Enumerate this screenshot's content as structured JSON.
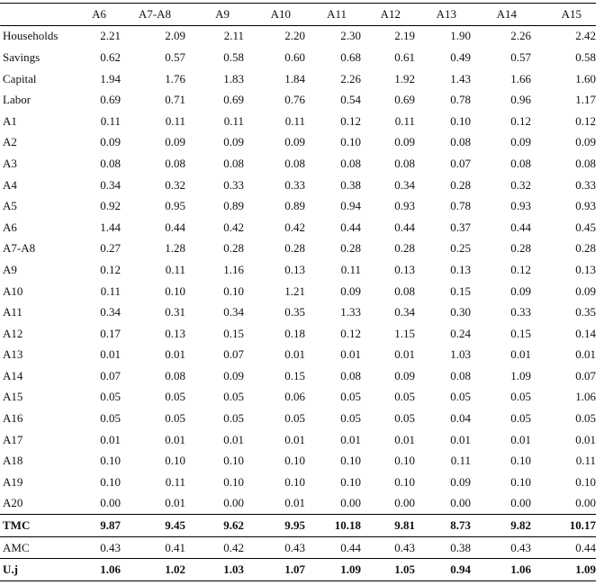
{
  "columns": [
    "A6",
    "A7-A8",
    "A9",
    "A10",
    "A11",
    "A12",
    "A13",
    "A14",
    "A15"
  ],
  "rows": [
    {
      "label": "Households",
      "values": [
        "2.21",
        "2.09",
        "2.11",
        "2.20",
        "2.30",
        "2.19",
        "1.90",
        "2.26",
        "2.42"
      ]
    },
    {
      "label": "Savings",
      "values": [
        "0.62",
        "0.57",
        "0.58",
        "0.60",
        "0.68",
        "0.61",
        "0.49",
        "0.57",
        "0.58"
      ]
    },
    {
      "label": "Capital",
      "values": [
        "1.94",
        "1.76",
        "1.83",
        "1.84",
        "2.26",
        "1.92",
        "1.43",
        "1.66",
        "1.60"
      ]
    },
    {
      "label": "Labor",
      "values": [
        "0.69",
        "0.71",
        "0.69",
        "0.76",
        "0.54",
        "0.69",
        "0.78",
        "0.96",
        "1.17"
      ]
    },
    {
      "label": "A1",
      "values": [
        "0.11",
        "0.11",
        "0.11",
        "0.11",
        "0.12",
        "0.11",
        "0.10",
        "0.12",
        "0.12"
      ]
    },
    {
      "label": "A2",
      "values": [
        "0.09",
        "0.09",
        "0.09",
        "0.09",
        "0.10",
        "0.09",
        "0.08",
        "0.09",
        "0.09"
      ]
    },
    {
      "label": "A3",
      "values": [
        "0.08",
        "0.08",
        "0.08",
        "0.08",
        "0.08",
        "0.08",
        "0.07",
        "0.08",
        "0.08"
      ]
    },
    {
      "label": "A4",
      "values": [
        "0.34",
        "0.32",
        "0.33",
        "0.33",
        "0.38",
        "0.34",
        "0.28",
        "0.32",
        "0.33"
      ]
    },
    {
      "label": "A5",
      "values": [
        "0.92",
        "0.95",
        "0.89",
        "0.89",
        "0.94",
        "0.93",
        "0.78",
        "0.93",
        "0.93"
      ]
    },
    {
      "label": "A6",
      "values": [
        "1.44",
        "0.44",
        "0.42",
        "0.42",
        "0.44",
        "0.44",
        "0.37",
        "0.44",
        "0.45"
      ]
    },
    {
      "label": "A7-A8",
      "values": [
        "0.27",
        "1.28",
        "0.28",
        "0.28",
        "0.28",
        "0.28",
        "0.25",
        "0.28",
        "0.28"
      ]
    },
    {
      "label": "A9",
      "values": [
        "0.12",
        "0.11",
        "1.16",
        "0.13",
        "0.11",
        "0.13",
        "0.13",
        "0.12",
        "0.13"
      ]
    },
    {
      "label": "A10",
      "values": [
        "0.11",
        "0.10",
        "0.10",
        "1.21",
        "0.09",
        "0.08",
        "0.15",
        "0.09",
        "0.09"
      ]
    },
    {
      "label": "A11",
      "values": [
        "0.34",
        "0.31",
        "0.34",
        "0.35",
        "1.33",
        "0.34",
        "0.30",
        "0.33",
        "0.35"
      ]
    },
    {
      "label": "A12",
      "values": [
        "0.17",
        "0.13",
        "0.15",
        "0.18",
        "0.12",
        "1.15",
        "0.24",
        "0.15",
        "0.14"
      ]
    },
    {
      "label": "A13",
      "values": [
        "0.01",
        "0.01",
        "0.07",
        "0.01",
        "0.01",
        "0.01",
        "1.03",
        "0.01",
        "0.01"
      ]
    },
    {
      "label": "A14",
      "values": [
        "0.07",
        "0.08",
        "0.09",
        "0.15",
        "0.08",
        "0.09",
        "0.08",
        "1.09",
        "0.07"
      ]
    },
    {
      "label": "A15",
      "values": [
        "0.05",
        "0.05",
        "0.05",
        "0.06",
        "0.05",
        "0.05",
        "0.05",
        "0.05",
        "1.06"
      ]
    },
    {
      "label": "A16",
      "values": [
        "0.05",
        "0.05",
        "0.05",
        "0.05",
        "0.05",
        "0.05",
        "0.04",
        "0.05",
        "0.05"
      ]
    },
    {
      "label": "A17",
      "values": [
        "0.01",
        "0.01",
        "0.01",
        "0.01",
        "0.01",
        "0.01",
        "0.01",
        "0.01",
        "0.01"
      ]
    },
    {
      "label": "A18",
      "values": [
        "0.10",
        "0.10",
        "0.10",
        "0.10",
        "0.10",
        "0.10",
        "0.11",
        "0.10",
        "0.11"
      ]
    },
    {
      "label": "A19",
      "values": [
        "0.10",
        "0.11",
        "0.10",
        "0.10",
        "0.10",
        "0.10",
        "0.09",
        "0.10",
        "0.10"
      ]
    },
    {
      "label": "A20",
      "values": [
        "0.00",
        "0.01",
        "0.00",
        "0.01",
        "0.00",
        "0.00",
        "0.00",
        "0.00",
        "0.00"
      ]
    }
  ],
  "summary_rows": [
    {
      "label": "TMC",
      "bold": true,
      "values": [
        "9.87",
        "9.45",
        "9.62",
        "9.95",
        "10.18",
        "9.81",
        "8.73",
        "9.82",
        "10.17"
      ]
    },
    {
      "label": "AMC",
      "bold": false,
      "values": [
        "0.43",
        "0.41",
        "0.42",
        "0.43",
        "0.44",
        "0.43",
        "0.38",
        "0.43",
        "0.44"
      ]
    },
    {
      "label": "U.j",
      "bold": true,
      "values": [
        "1.06",
        "1.02",
        "1.03",
        "1.07",
        "1.09",
        "1.05",
        "0.94",
        "1.06",
        "1.09"
      ]
    }
  ]
}
